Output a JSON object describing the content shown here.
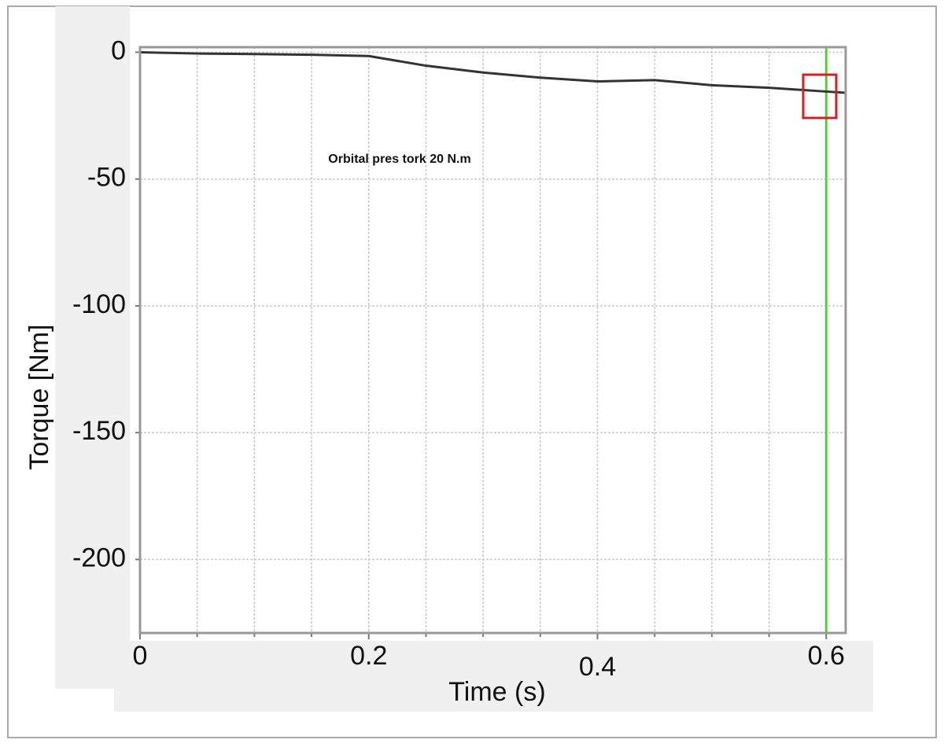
{
  "chart_data": {
    "type": "line",
    "x_label": "Time (s)",
    "y_label": "Torque [Nm]",
    "annotation": "Orbital pres tork 20 N.m",
    "x": [
      0,
      0.05,
      0.1,
      0.15,
      0.2,
      0.25,
      0.3,
      0.35,
      0.4,
      0.45,
      0.5,
      0.55,
      0.6,
      0.617
    ],
    "series": [
      {
        "color": "#333333",
        "values": [
          0,
          -0.5,
          -0.7,
          -1,
          -1.5,
          -5.3,
          -8,
          -10,
          -11.5,
          -11,
          -13,
          -14,
          -15.5,
          -16
        ]
      }
    ],
    "xlim": [
      0,
      0.617
    ],
    "ylim": [
      -229,
      2
    ],
    "xticks": [
      0,
      0.2,
      0.4,
      0.6
    ],
    "x_minor_ticks": [
      0.05,
      0.1,
      0.15,
      0.25,
      0.3,
      0.35,
      0.45,
      0.5,
      0.55
    ],
    "yticks": [
      0,
      -50,
      -100,
      -150,
      -200
    ],
    "grid": true,
    "cursor_x": 0.6,
    "cursor_color": "#44dd22"
  }
}
